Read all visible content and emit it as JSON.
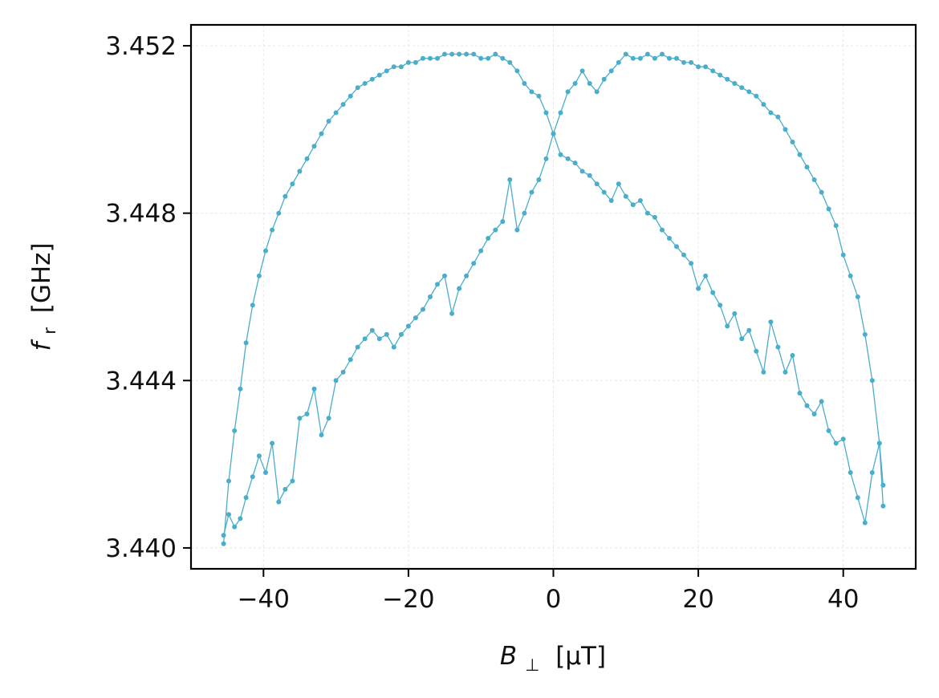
{
  "chart_data": {
    "type": "line",
    "xlabel": {
      "symbol": "B",
      "sub": "⊥",
      "unit": "[μT]"
    },
    "ylabel": {
      "symbol": "f",
      "sub": "r",
      "unit": "[GHz]"
    },
    "xlim": [
      -50,
      50
    ],
    "ylim": [
      3.4395,
      3.4525
    ],
    "xticks": [
      -40,
      -20,
      0,
      20,
      40
    ],
    "xtick_labels": [
      "−40",
      "−20",
      "0",
      "20",
      "40"
    ],
    "yticks": [
      3.44,
      3.444,
      3.448,
      3.452
    ],
    "ytick_labels": [
      "3.440",
      "3.444",
      "3.448",
      "3.452"
    ],
    "grid": true,
    "color": "#4aadca",
    "series": [
      {
        "x": [
          -45.5,
          -44.8,
          -44.0,
          -43.2,
          -42.4,
          -41.5,
          -40.6,
          -39.7,
          -38.8,
          -37.9,
          -37.0,
          -36.0,
          -35.0,
          -34.0,
          -33.0,
          -32.0,
          -31.0,
          -30.0,
          -29.0,
          -28.0,
          -27.0,
          -26.0,
          -25.0,
          -24.0,
          -23.0,
          -22.0,
          -21.0,
          -20.0,
          -19.0,
          -18.0,
          -17.0,
          -16.0,
          -15.0,
          -14.0,
          -13.0,
          -12.0,
          -11.0,
          -10.0,
          -9.0,
          -8.0,
          -7.0,
          -6.0,
          -5.0,
          -4.0,
          -3.0,
          -2.0,
          -1.0,
          0.0,
          1.0,
          2.0,
          3.0,
          4.0,
          5.0,
          6.0,
          7.0,
          8.0,
          9.0,
          10.0,
          11.0,
          12.0,
          13.0,
          14.0,
          15.0,
          16.0,
          17.0,
          18.0,
          19.0,
          20.0,
          21.0,
          22.0,
          23.0,
          24.0,
          25.0,
          26.0,
          27.0,
          28.0,
          29.0,
          30.0,
          31.0,
          32.0,
          33.0,
          34.0,
          35.0,
          36.0,
          37.0,
          38.0,
          39.0,
          40.0,
          41.0,
          42.0,
          43.0,
          44.0,
          45.0,
          45.5
        ],
        "values": [
          3.4401,
          3.4416,
          3.4428,
          3.4438,
          3.4449,
          3.4458,
          3.4465,
          3.4471,
          3.4476,
          3.448,
          3.4484,
          3.4487,
          3.449,
          3.4493,
          3.4496,
          3.4499,
          3.4502,
          3.4504,
          3.4506,
          3.4508,
          3.451,
          3.4511,
          3.4512,
          3.4513,
          3.4514,
          3.4515,
          3.4515,
          3.4516,
          3.4516,
          3.4517,
          3.4517,
          3.4517,
          3.4518,
          3.4518,
          3.4518,
          3.4518,
          3.4518,
          3.4517,
          3.4517,
          3.4518,
          3.4517,
          3.4516,
          3.4514,
          3.4511,
          3.4509,
          3.4508,
          3.4504,
          3.4499,
          3.4494,
          3.4493,
          3.4492,
          3.449,
          3.4489,
          3.4487,
          3.4485,
          3.4483,
          3.4487,
          3.4484,
          3.4482,
          3.4483,
          3.448,
          3.4479,
          3.4476,
          3.4474,
          3.4472,
          3.447,
          3.4468,
          3.4462,
          3.4465,
          3.4461,
          3.4458,
          3.4453,
          3.4456,
          3.445,
          3.4452,
          3.4447,
          3.4442,
          3.4454,
          3.4448,
          3.4442,
          3.4446,
          3.4437,
          3.4434,
          3.4432,
          3.4435,
          3.4428,
          3.4425,
          3.4426,
          3.4418,
          3.4412,
          3.4406,
          3.4418,
          3.4425,
          3.4415
        ]
      },
      {
        "x": [
          -45.5,
          -44.8,
          -44.0,
          -43.2,
          -42.4,
          -41.5,
          -40.6,
          -39.7,
          -38.8,
          -37.9,
          -37.0,
          -36.0,
          -35.0,
          -34.0,
          -33.0,
          -32.0,
          -31.0,
          -30.0,
          -29.0,
          -28.0,
          -27.0,
          -26.0,
          -25.0,
          -24.0,
          -23.0,
          -22.0,
          -21.0,
          -20.0,
          -19.0,
          -18.0,
          -17.0,
          -16.0,
          -15.0,
          -14.0,
          -13.0,
          -12.0,
          -11.0,
          -10.0,
          -9.0,
          -8.0,
          -7.0,
          -6.0,
          -5.0,
          -4.0,
          -3.0,
          -2.0,
          -1.0,
          0.0,
          1.0,
          2.0,
          3.0,
          4.0,
          5.0,
          6.0,
          7.0,
          8.0,
          9.0,
          10.0,
          11.0,
          12.0,
          13.0,
          14.0,
          15.0,
          16.0,
          17.0,
          18.0,
          19.0,
          20.0,
          21.0,
          22.0,
          23.0,
          24.0,
          25.0,
          26.0,
          27.0,
          28.0,
          29.0,
          30.0,
          31.0,
          32.0,
          33.0,
          34.0,
          35.0,
          36.0,
          37.0,
          38.0,
          39.0,
          40.0,
          41.0,
          42.0,
          43.0,
          44.0,
          45.0,
          45.5
        ],
        "values": [
          3.4403,
          3.4408,
          3.4405,
          3.4407,
          3.4412,
          3.4417,
          3.4422,
          3.4418,
          3.4425,
          3.4411,
          3.4414,
          3.4416,
          3.4431,
          3.4432,
          3.4438,
          3.4427,
          3.4431,
          3.444,
          3.4442,
          3.4445,
          3.4448,
          3.445,
          3.4452,
          3.445,
          3.4451,
          3.4448,
          3.4451,
          3.4453,
          3.4455,
          3.4457,
          3.446,
          3.4463,
          3.4465,
          3.4456,
          3.4462,
          3.4465,
          3.4468,
          3.4471,
          3.4474,
          3.4476,
          3.4478,
          3.4488,
          3.4476,
          3.448,
          3.4485,
          3.4488,
          3.4493,
          3.4499,
          3.4504,
          3.4509,
          3.4511,
          3.4514,
          3.4511,
          3.4509,
          3.4512,
          3.4514,
          3.4516,
          3.4518,
          3.4517,
          3.4517,
          3.4518,
          3.4517,
          3.4518,
          3.4517,
          3.4517,
          3.4516,
          3.4516,
          3.4515,
          3.4515,
          3.4514,
          3.4513,
          3.4512,
          3.4511,
          3.451,
          3.4509,
          3.4508,
          3.4506,
          3.4504,
          3.4503,
          3.45,
          3.4497,
          3.4494,
          3.4491,
          3.4488,
          3.4485,
          3.4481,
          3.4477,
          3.447,
          3.4465,
          3.446,
          3.4451,
          3.444,
          3.4425,
          3.441
        ]
      }
    ]
  }
}
